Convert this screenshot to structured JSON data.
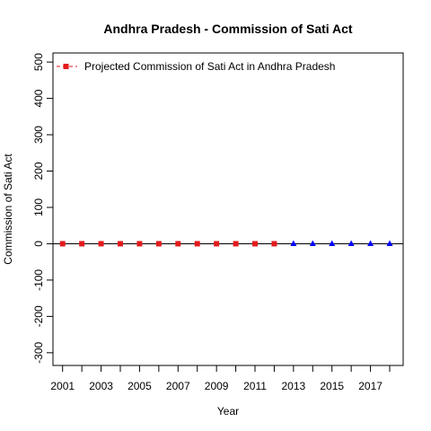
{
  "chart_data": {
    "type": "scatter",
    "title": "Andhra Pradesh  -  Commission of Sati Act",
    "xlabel": "Year",
    "ylabel": "Commission of Sati Act",
    "xlim": [
      2000.5,
      2018.7
    ],
    "ylim": [
      -335,
      525
    ],
    "x_ticks": [
      2001,
      2003,
      2005,
      2007,
      2009,
      2011,
      2013,
      2015,
      2017
    ],
    "x_tick_labels": [
      "2001",
      "2003",
      "2005",
      "2007",
      "2009",
      "2011",
      "2013",
      "2015",
      "2017"
    ],
    "y_ticks": [
      -300,
      -200,
      -100,
      0,
      100,
      200,
      300,
      400,
      500
    ],
    "y_tick_labels": [
      "-300",
      "-200",
      "-100",
      "0",
      "100",
      "200",
      "300",
      "400",
      "500"
    ],
    "zero_line": true,
    "legend": {
      "position": "top-left",
      "label": "Projected  Commission of Sati Act  in  Andhra Pradesh"
    },
    "series": [
      {
        "marker": "square",
        "color": "#e31a1c",
        "x": [
          2001,
          2002,
          2003,
          2004,
          2005,
          2006,
          2007,
          2008,
          2009,
          2010,
          2011,
          2012
        ],
        "y": [
          0,
          0,
          0,
          0,
          0,
          0,
          0,
          0,
          0,
          0,
          0,
          0
        ]
      },
      {
        "marker": "triangle",
        "color": "#0000ff",
        "x": [
          2013,
          2014,
          2015,
          2016,
          2017,
          2018
        ],
        "y": [
          0,
          0,
          0,
          0,
          0,
          0
        ]
      }
    ]
  }
}
